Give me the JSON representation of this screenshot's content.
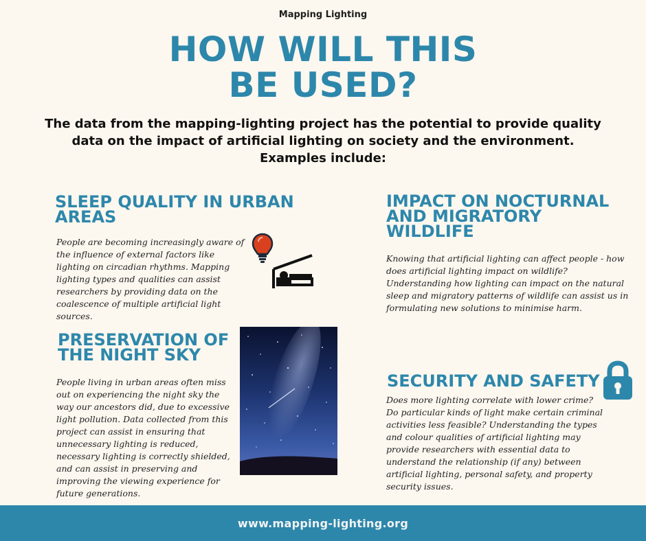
{
  "header": {
    "top_label": "Mapping Lighting",
    "title_lines": [
      "HOW WILL THIS",
      "BE USED?"
    ],
    "intro": "The data from the mapping-lighting project has the potential to provide quality data on the impact of artificial lighting on society and the environment. Examples include:"
  },
  "sections": {
    "sleep": {
      "title_lines": [
        "SLEEP QUALITY IN URBAN",
        "AREAS"
      ],
      "body": "People are becoming increasingly aware of the influence of external factors like lighting on circadian rhythms. Mapping lighting types and qualities can assist researchers by providing data on the coalescence of multiple artificial light sources.",
      "icons": [
        "light-bulb-icon",
        "bed-icon"
      ]
    },
    "wildlife": {
      "title_lines": [
        "IMPACT ON NOCTURNAL",
        "AND MIGRATORY",
        "WILDLIFE"
      ],
      "body": "Knowing that artificial lighting can affect people - how does artificial lighting impact on wildlife? Understanding how lighting can impact on the natural sleep and migratory patterns of wildlife can assist us in formulating new solutions to minimise harm."
    },
    "night_sky": {
      "title_lines": [
        "PRESERVATION OF",
        "THE NIGHT SKY"
      ],
      "body": "People living in urban areas often miss out on experiencing the night sky the way our ancestors did, due to excessive light pollution. Data collected from this project can assist in ensuring that unnecessary lighting is reduced, necessary lighting is correctly shielded, and can assist in preserving and improving the viewing experience for future generations."
    },
    "security": {
      "title_lines": [
        "SECURITY AND SAFETY"
      ],
      "body": "Does more lighting correlate with lower crime? Do particular kinds of light make certain criminal activities less feasible? Understanding the types and colour qualities of artificial lighting may provide researchers with essential data to understand the relationship (if any) between artificial lighting, personal safety, and property security issues.",
      "icons": [
        "padlock-icon"
      ]
    }
  },
  "footer": {
    "url": "www.mapping-lighting.org"
  },
  "colors": {
    "accent": "#2d87ab",
    "background": "#fcf7ef",
    "bulb": "#d9411e",
    "footer_text": "#f3f3f3"
  }
}
